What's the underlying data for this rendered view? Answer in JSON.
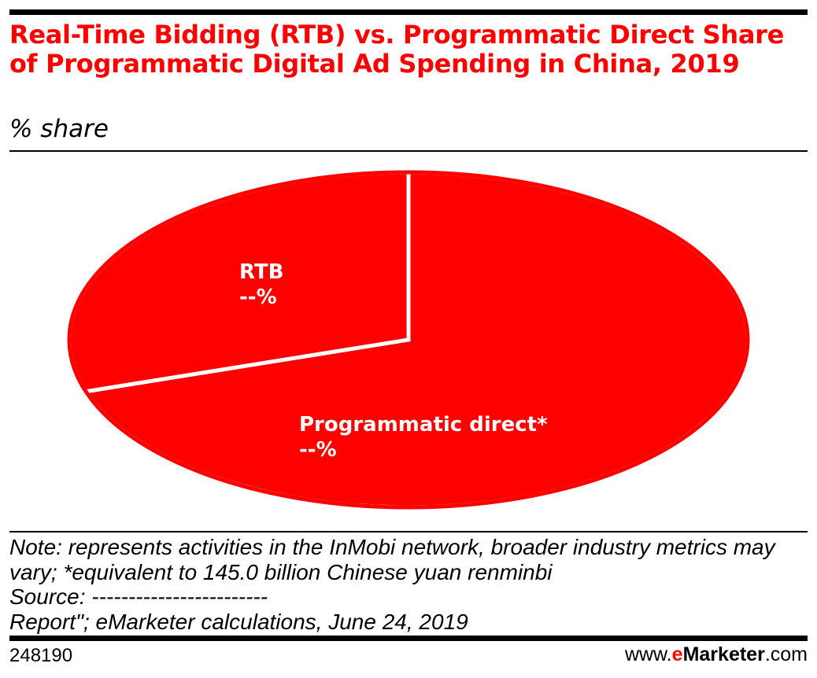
{
  "chart_data": {
    "type": "pie",
    "title": "Real-Time Bidding (RTB) vs. Programmatic Direct Share of Programmatic Digital Ad Spending in China, 2019",
    "subtitle": "% share",
    "slices": [
      {
        "name": "RTB",
        "value": 30,
        "label_value": "--%",
        "color": "#ff0000"
      },
      {
        "name": "Programmatic direct*",
        "value": 70,
        "label_value": "--%",
        "color": "#ff0000"
      }
    ],
    "separator_color": "#ffffff"
  },
  "notes": {
    "note": "Note: represents activities in the InMobi network, broader industry metrics may vary; *equivalent to 145.0 billion Chinese yuan renminbi",
    "source": "Source: ------------------------",
    "report": "Report\"; eMarketer calculations, June 24, 2019"
  },
  "footer": {
    "chart_id": "248190",
    "brand_prefix": "www.",
    "brand_e": "e",
    "brand_name": "Marketer",
    "brand_suffix": ".com"
  }
}
